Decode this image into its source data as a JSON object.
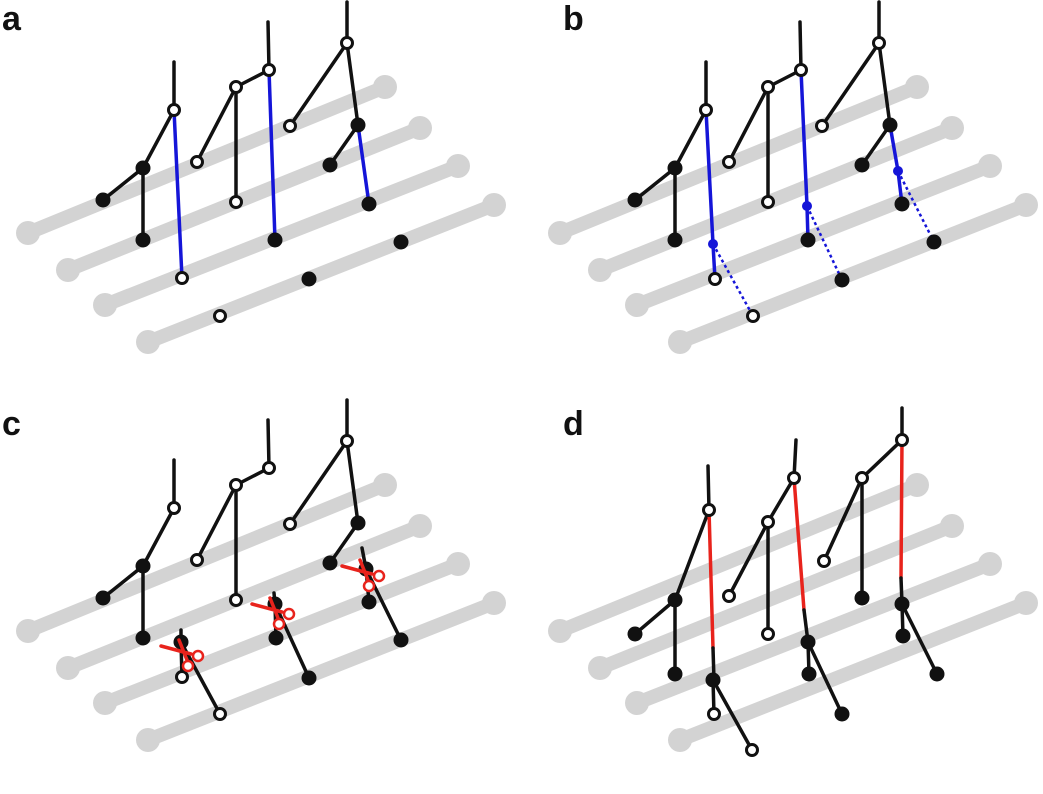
{
  "panels": [
    {
      "id": "a",
      "label": "a"
    },
    {
      "id": "b",
      "label": "b"
    },
    {
      "id": "c",
      "label": "c"
    },
    {
      "id": "d",
      "label": "d"
    }
  ],
  "colors": {
    "background": "#ffffff",
    "line": "#111111",
    "strand": "#d3d3d3",
    "blue": "#1515d8",
    "red": "#e8231c"
  },
  "icons": {
    "cut_marker": "scissors-icon",
    "open_node": "open-circle",
    "filled_node": "filled-circle"
  }
}
